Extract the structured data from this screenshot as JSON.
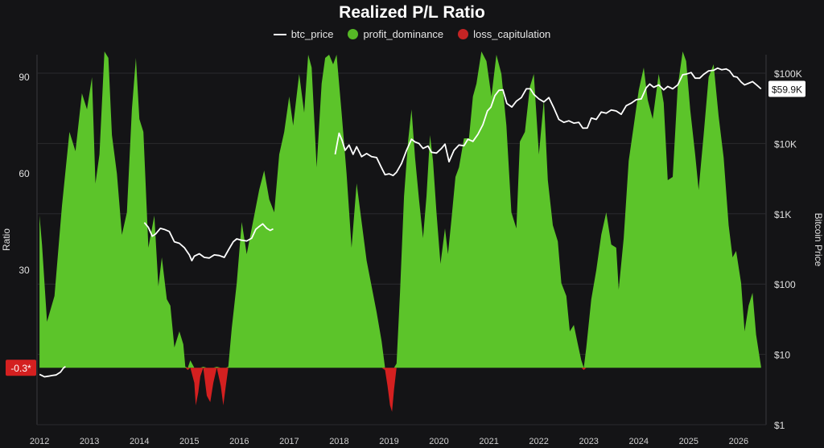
{
  "title": "Realized P/L Ratio",
  "legend": [
    {
      "label": "btc_price",
      "color": "#ffffff",
      "shape": "line"
    },
    {
      "label": "profit_dominance",
      "color": "#56b826",
      "shape": "dot"
    },
    {
      "label": "loss_capitulation",
      "color": "#c42424",
      "shape": "dot"
    }
  ],
  "colors": {
    "background": "#141416",
    "grid": "#2a2a2e",
    "profit": "#5cc42a",
    "loss": "#d42020",
    "price": "#ffffff"
  },
  "chart_data": {
    "type": "area",
    "left_axis": {
      "label": "Ratio",
      "ticks": [
        90,
        60,
        30
      ],
      "baseline": -0.3,
      "baseline_label": "-0.3*",
      "range": [
        -18,
        97
      ]
    },
    "right_axis": {
      "label": "Bitcoin Price",
      "scale": "log",
      "ticks": [
        "$100K",
        "$10K",
        "$1K",
        "$100",
        "$10",
        "$1"
      ],
      "tick_values": [
        100000,
        10000,
        1000,
        100,
        10,
        1
      ],
      "current_label": "$59.9K",
      "current_value": 59900
    },
    "x_axis": {
      "ticks": [
        "2012",
        "2013",
        "2014",
        "2015",
        "2016",
        "2017",
        "2018",
        "2019",
        "2020",
        "2021",
        "2022",
        "2023",
        "2024",
        "2025",
        "2026"
      ],
      "range": [
        2011.95,
        2026.55
      ]
    },
    "ratio_series": [
      [
        2012.0,
        47
      ],
      [
        2012.05,
        38
      ],
      [
        2012.15,
        14
      ],
      [
        2012.3,
        22
      ],
      [
        2012.45,
        50
      ],
      [
        2012.6,
        73
      ],
      [
        2012.72,
        67
      ],
      [
        2012.85,
        85
      ],
      [
        2012.95,
        80
      ],
      [
        2013.05,
        90
      ],
      [
        2013.12,
        57
      ],
      [
        2013.2,
        66
      ],
      [
        2013.3,
        98
      ],
      [
        2013.38,
        96
      ],
      [
        2013.45,
        72
      ],
      [
        2013.55,
        60
      ],
      [
        2013.65,
        41
      ],
      [
        2013.75,
        48
      ],
      [
        2013.85,
        80
      ],
      [
        2013.93,
        96
      ],
      [
        2014.0,
        77
      ],
      [
        2014.08,
        73
      ],
      [
        2014.18,
        37
      ],
      [
        2014.3,
        47
      ],
      [
        2014.38,
        25
      ],
      [
        2014.45,
        34
      ],
      [
        2014.55,
        21
      ],
      [
        2014.62,
        19
      ],
      [
        2014.7,
        6
      ],
      [
        2014.8,
        11
      ],
      [
        2014.88,
        7
      ],
      [
        2014.92,
        0
      ],
      [
        2014.97,
        -1
      ],
      [
        2015.02,
        2
      ],
      [
        2015.1,
        -5
      ],
      [
        2015.13,
        -12
      ],
      [
        2015.18,
        -8
      ],
      [
        2015.22,
        -3
      ],
      [
        2015.28,
        0
      ],
      [
        2015.35,
        -9
      ],
      [
        2015.42,
        -11
      ],
      [
        2015.48,
        -5
      ],
      [
        2015.55,
        0
      ],
      [
        2015.63,
        -6
      ],
      [
        2015.68,
        -12
      ],
      [
        2015.73,
        -6
      ],
      [
        2015.78,
        0
      ],
      [
        2015.85,
        12
      ],
      [
        2015.95,
        26
      ],
      [
        2016.05,
        45
      ],
      [
        2016.15,
        35
      ],
      [
        2016.25,
        43
      ],
      [
        2016.4,
        55
      ],
      [
        2016.5,
        61
      ],
      [
        2016.6,
        52
      ],
      [
        2016.7,
        48
      ],
      [
        2016.8,
        66
      ],
      [
        2016.9,
        73
      ],
      [
        2017.0,
        84
      ],
      [
        2017.08,
        75
      ],
      [
        2017.2,
        91
      ],
      [
        2017.3,
        79
      ],
      [
        2017.38,
        97
      ],
      [
        2017.45,
        93
      ],
      [
        2017.55,
        62
      ],
      [
        2017.65,
        88
      ],
      [
        2017.72,
        96
      ],
      [
        2017.8,
        97
      ],
      [
        2017.88,
        94
      ],
      [
        2017.95,
        97
      ],
      [
        2018.05,
        79
      ],
      [
        2018.15,
        60
      ],
      [
        2018.25,
        37
      ],
      [
        2018.35,
        57
      ],
      [
        2018.45,
        45
      ],
      [
        2018.55,
        33
      ],
      [
        2018.65,
        25
      ],
      [
        2018.75,
        17
      ],
      [
        2018.85,
        8
      ],
      [
        2018.92,
        -1
      ],
      [
        2018.97,
        -6
      ],
      [
        2019.02,
        -12
      ],
      [
        2019.06,
        -14
      ],
      [
        2019.1,
        -7
      ],
      [
        2019.15,
        1
      ],
      [
        2019.22,
        23
      ],
      [
        2019.3,
        53
      ],
      [
        2019.38,
        70
      ],
      [
        2019.45,
        80
      ],
      [
        2019.52,
        65
      ],
      [
        2019.6,
        52
      ],
      [
        2019.68,
        40
      ],
      [
        2019.75,
        53
      ],
      [
        2019.82,
        72
      ],
      [
        2019.88,
        64
      ],
      [
        2019.95,
        48
      ],
      [
        2020.03,
        32
      ],
      [
        2020.12,
        43
      ],
      [
        2020.18,
        35
      ],
      [
        2020.25,
        46
      ],
      [
        2020.33,
        59
      ],
      [
        2020.4,
        62
      ],
      [
        2020.5,
        71
      ],
      [
        2020.6,
        71
      ],
      [
        2020.68,
        84
      ],
      [
        2020.75,
        88
      ],
      [
        2020.85,
        98
      ],
      [
        2020.95,
        95
      ],
      [
        2021.05,
        84
      ],
      [
        2021.15,
        97
      ],
      [
        2021.25,
        91
      ],
      [
        2021.35,
        75
      ],
      [
        2021.45,
        48
      ],
      [
        2021.55,
        43
      ],
      [
        2021.62,
        70
      ],
      [
        2021.72,
        73
      ],
      [
        2021.82,
        87
      ],
      [
        2021.9,
        91
      ],
      [
        2022.0,
        66
      ],
      [
        2022.1,
        83
      ],
      [
        2022.18,
        58
      ],
      [
        2022.28,
        44
      ],
      [
        2022.38,
        39
      ],
      [
        2022.45,
        26
      ],
      [
        2022.55,
        22
      ],
      [
        2022.62,
        11
      ],
      [
        2022.7,
        13
      ],
      [
        2022.78,
        7
      ],
      [
        2022.85,
        2
      ],
      [
        2022.9,
        -1
      ],
      [
        2022.95,
        6
      ],
      [
        2023.05,
        21
      ],
      [
        2023.15,
        30
      ],
      [
        2023.25,
        41
      ],
      [
        2023.35,
        48
      ],
      [
        2023.45,
        38
      ],
      [
        2023.55,
        37
      ],
      [
        2023.6,
        24
      ],
      [
        2023.7,
        40
      ],
      [
        2023.8,
        64
      ],
      [
        2023.9,
        75
      ],
      [
        2024.0,
        86
      ],
      [
        2024.1,
        93
      ],
      [
        2024.18,
        83
      ],
      [
        2024.28,
        77
      ],
      [
        2024.4,
        91
      ],
      [
        2024.5,
        82
      ],
      [
        2024.58,
        58
      ],
      [
        2024.68,
        59
      ],
      [
        2024.78,
        87
      ],
      [
        2024.88,
        98
      ],
      [
        2024.95,
        95
      ],
      [
        2025.03,
        80
      ],
      [
        2025.13,
        66
      ],
      [
        2025.2,
        55
      ],
      [
        2025.3,
        72
      ],
      [
        2025.4,
        90
      ],
      [
        2025.5,
        94
      ],
      [
        2025.6,
        78
      ],
      [
        2025.7,
        65
      ],
      [
        2025.8,
        44
      ],
      [
        2025.88,
        34
      ],
      [
        2025.95,
        36
      ],
      [
        2026.05,
        26
      ],
      [
        2026.12,
        11
      ],
      [
        2026.2,
        19
      ],
      [
        2026.28,
        23
      ],
      [
        2026.35,
        10
      ],
      [
        2026.45,
        0
      ]
    ],
    "price_series": [
      [
        2012.0,
        5.2
      ],
      [
        2012.05,
        5.0
      ],
      [
        2012.1,
        4.8
      ],
      [
        2012.18,
        4.9
      ],
      [
        2012.25,
        5.0
      ],
      [
        2012.33,
        5.1
      ],
      [
        2012.42,
        5.6
      ],
      [
        2012.48,
        6.4
      ],
      [
        2012.52,
        6.7
      ],
      [
        2014.1,
        750
      ],
      [
        2014.18,
        640
      ],
      [
        2014.26,
        480
      ],
      [
        2014.33,
        520
      ],
      [
        2014.42,
        620
      ],
      [
        2014.5,
        600
      ],
      [
        2014.6,
        560
      ],
      [
        2014.7,
        400
      ],
      [
        2014.8,
        380
      ],
      [
        2014.9,
        330
      ],
      [
        2015.0,
        260
      ],
      [
        2015.05,
        215
      ],
      [
        2015.1,
        250
      ],
      [
        2015.2,
        270
      ],
      [
        2015.3,
        240
      ],
      [
        2015.4,
        235
      ],
      [
        2015.5,
        260
      ],
      [
        2015.6,
        255
      ],
      [
        2015.7,
        240
      ],
      [
        2015.8,
        320
      ],
      [
        2015.88,
        400
      ],
      [
        2015.95,
        440
      ],
      [
        2016.05,
        420
      ],
      [
        2016.15,
        410
      ],
      [
        2016.25,
        450
      ],
      [
        2016.33,
        600
      ],
      [
        2016.4,
        660
      ],
      [
        2016.47,
        720
      ],
      [
        2016.55,
        620
      ],
      [
        2016.62,
        580
      ],
      [
        2016.68,
        610
      ],
      [
        2017.92,
        7000
      ],
      [
        2018.0,
        14000
      ],
      [
        2018.06,
        11000
      ],
      [
        2018.12,
        8000
      ],
      [
        2018.2,
        9500
      ],
      [
        2018.28,
        7000
      ],
      [
        2018.35,
        9000
      ],
      [
        2018.45,
        6500
      ],
      [
        2018.55,
        7200
      ],
      [
        2018.65,
        6500
      ],
      [
        2018.75,
        6300
      ],
      [
        2018.85,
        4500
      ],
      [
        2018.92,
        3600
      ],
      [
        2019.0,
        3700
      ],
      [
        2019.08,
        3500
      ],
      [
        2019.15,
        3900
      ],
      [
        2019.25,
        5200
      ],
      [
        2019.35,
        8000
      ],
      [
        2019.45,
        11500
      ],
      [
        2019.52,
        10500
      ],
      [
        2019.6,
        10000
      ],
      [
        2019.68,
        8500
      ],
      [
        2019.78,
        9200
      ],
      [
        2019.85,
        7500
      ],
      [
        2019.95,
        7300
      ],
      [
        2020.05,
        8500
      ],
      [
        2020.12,
        9800
      ],
      [
        2020.2,
        5500
      ],
      [
        2020.3,
        8000
      ],
      [
        2020.4,
        9500
      ],
      [
        2020.5,
        9300
      ],
      [
        2020.58,
        11500
      ],
      [
        2020.68,
        10700
      ],
      [
        2020.78,
        13500
      ],
      [
        2020.88,
        18500
      ],
      [
        2020.97,
        29000
      ],
      [
        2021.04,
        33000
      ],
      [
        2021.12,
        48000
      ],
      [
        2021.2,
        57000
      ],
      [
        2021.28,
        58000
      ],
      [
        2021.36,
        37000
      ],
      [
        2021.46,
        33000
      ],
      [
        2021.55,
        40000
      ],
      [
        2021.65,
        45000
      ],
      [
        2021.75,
        60000
      ],
      [
        2021.83,
        60000
      ],
      [
        2021.9,
        50000
      ],
      [
        2022.0,
        43000
      ],
      [
        2022.1,
        39000
      ],
      [
        2022.2,
        45000
      ],
      [
        2022.3,
        32000
      ],
      [
        2022.4,
        22000
      ],
      [
        2022.5,
        20000
      ],
      [
        2022.6,
        21000
      ],
      [
        2022.7,
        19500
      ],
      [
        2022.8,
        20000
      ],
      [
        2022.88,
        16500
      ],
      [
        2022.97,
        16600
      ],
      [
        2023.05,
        23000
      ],
      [
        2023.15,
        22000
      ],
      [
        2023.25,
        28000
      ],
      [
        2023.35,
        27000
      ],
      [
        2023.45,
        30000
      ],
      [
        2023.55,
        29000
      ],
      [
        2023.65,
        26000
      ],
      [
        2023.75,
        34500
      ],
      [
        2023.85,
        37500
      ],
      [
        2023.95,
        42000
      ],
      [
        2024.05,
        43000
      ],
      [
        2024.15,
        62000
      ],
      [
        2024.22,
        70000
      ],
      [
        2024.3,
        63000
      ],
      [
        2024.4,
        68000
      ],
      [
        2024.5,
        58000
      ],
      [
        2024.58,
        65000
      ],
      [
        2024.68,
        60000
      ],
      [
        2024.78,
        68000
      ],
      [
        2024.88,
        95000
      ],
      [
        2024.95,
        97000
      ],
      [
        2025.05,
        102000
      ],
      [
        2025.13,
        85000
      ],
      [
        2025.22,
        85000
      ],
      [
        2025.3,
        96000
      ],
      [
        2025.4,
        108000
      ],
      [
        2025.5,
        110000
      ],
      [
        2025.58,
        118000
      ],
      [
        2025.66,
        112000
      ],
      [
        2025.75,
        115000
      ],
      [
        2025.82,
        108000
      ],
      [
        2025.9,
        90000
      ],
      [
        2025.97,
        88000
      ],
      [
        2026.05,
        75000
      ],
      [
        2026.12,
        68000
      ],
      [
        2026.2,
        72000
      ],
      [
        2026.28,
        76000
      ],
      [
        2026.36,
        68000
      ],
      [
        2026.45,
        59900
      ]
    ]
  }
}
